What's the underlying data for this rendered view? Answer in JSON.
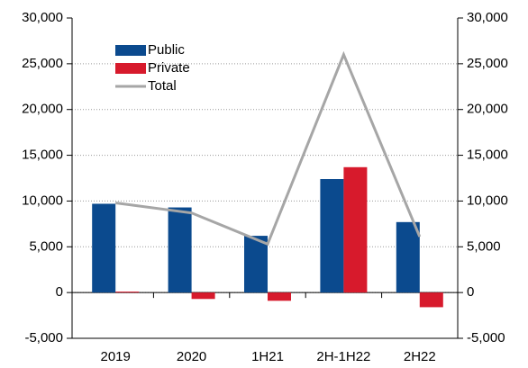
{
  "chart_data": {
    "type": "bar",
    "categories": [
      "2019",
      "2020",
      "1H21",
      "2H-1H22",
      "2H22"
    ],
    "series": [
      {
        "name": "Public",
        "color": "#0b4a8e",
        "values": [
          9700,
          9300,
          6200,
          12400,
          7700
        ]
      },
      {
        "name": "Private",
        "color": "#d71a2c",
        "values": [
          100,
          -700,
          -900,
          13700,
          -1600
        ]
      },
      {
        "name": "Total",
        "color": "#a6a6a6",
        "type": "line",
        "values": [
          9800,
          8700,
          5300,
          26000,
          6100
        ]
      }
    ],
    "ylim": [
      -5000,
      30000
    ],
    "yticks": [
      {
        "value": -5000,
        "label": "-5,000"
      },
      0,
      {
        "value": 5000,
        "label": "5,000"
      },
      {
        "value": 10000,
        "label": "10,000"
      },
      {
        "value": 15000,
        "label": "15,000"
      },
      {
        "value": 20000,
        "label": "20,000"
      },
      {
        "value": 25000,
        "label": "25,000"
      },
      {
        "value": 30000,
        "label": "30,000"
      }
    ],
    "y2lim": [
      -5000,
      30000
    ],
    "y2ticks": [
      {
        "value": -5000,
        "label": "-5,000"
      },
      0,
      {
        "value": 5000,
        "label": "5,000"
      },
      {
        "value": 10000,
        "label": "10,000"
      },
      {
        "value": 15000,
        "label": "15,000"
      },
      {
        "value": 20000,
        "label": "20,000"
      },
      {
        "value": 25000,
        "label": "25,000"
      },
      {
        "value": 30000,
        "label": "30,000"
      }
    ],
    "grid": true
  }
}
